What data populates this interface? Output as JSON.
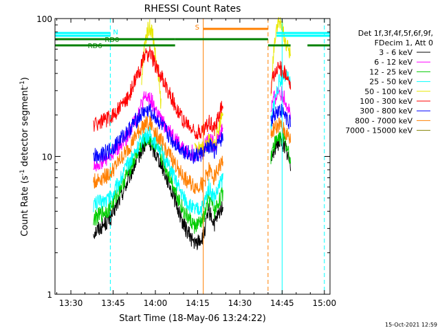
{
  "chart_data": {
    "type": "line",
    "title": "RHESSI Count Rates",
    "xlabel": "Start Time (18-May-06 13:24:22)",
    "ylabel_main": "Count Rate (s",
    "ylabel_sup1": "-1",
    "ylabel_mid": " detector segment",
    "ylabel_sup2": "-1",
    "ylabel_end": ")",
    "yscale": "log",
    "ylim": [
      1,
      100
    ],
    "xlim": [
      "13:24:22",
      "15:02:00"
    ],
    "x_tick_labels": [
      "13:30",
      "13:45",
      "14:00",
      "14:15",
      "14:30",
      "14:45",
      "15:00"
    ],
    "x_ticks": [
      "13:30",
      "13:45",
      "14:00",
      "14:15",
      "14:30",
      "14:45",
      "15:00"
    ],
    "y_tick_labels": [
      "1",
      "10",
      "100"
    ],
    "y_ticks": [
      1,
      10,
      100
    ],
    "footer_date": "15-Oct-2021 12:59",
    "legend": {
      "header1": "Det 1f,3f,4f,5f,6f,9f,",
      "header2": "FDecim 1, Att 0",
      "placement": "right"
    },
    "series": [
      {
        "name": "3 - 6 keV",
        "color": "#000000",
        "points": [
          [
            "13:38",
            2.8
          ],
          [
            "13:44",
            3.5
          ],
          [
            "13:50",
            6.5
          ],
          [
            "13:54",
            10
          ],
          [
            "13:56",
            12
          ],
          [
            "13:58",
            12.5
          ],
          [
            "14:02",
            9
          ],
          [
            "14:06",
            5.5
          ],
          [
            "14:10",
            3.2
          ],
          [
            "14:14",
            2.3
          ],
          [
            "14:17",
            2.6
          ],
          [
            "14:19",
            4
          ],
          [
            "14:21",
            3.2
          ],
          [
            "14:24",
            4.5
          ],
          [
            "14:41",
            9
          ],
          [
            "14:42",
            11
          ],
          [
            "14:44",
            13
          ],
          [
            "14:46",
            12
          ],
          [
            "14:48",
            8.5
          ]
        ]
      },
      {
        "name": "6 - 12 keV",
        "color": "#ff00ff",
        "points": [
          [
            "13:38",
            8.5
          ],
          [
            "13:44",
            10
          ],
          [
            "13:50",
            14
          ],
          [
            "13:54",
            21
          ],
          [
            "13:56",
            26
          ],
          [
            "13:58",
            27
          ],
          [
            "14:02",
            18
          ],
          [
            "14:06",
            14.5
          ],
          [
            "14:10",
            11
          ],
          [
            "14:14",
            10.5
          ],
          [
            "14:17",
            11
          ],
          [
            "14:19",
            14
          ],
          [
            "14:21",
            12
          ],
          [
            "14:24",
            16
          ],
          [
            "14:41",
            22
          ],
          [
            "14:42",
            26
          ],
          [
            "14:44",
            30
          ],
          [
            "14:46",
            26
          ],
          [
            "14:48",
            20
          ]
        ]
      },
      {
        "name": "12 - 25 keV",
        "color": "#00cc00",
        "points": [
          [
            "13:38",
            3.5
          ],
          [
            "13:44",
            4.2
          ],
          [
            "13:50",
            7.5
          ],
          [
            "13:54",
            11
          ],
          [
            "13:56",
            13
          ],
          [
            "13:58",
            13.5
          ],
          [
            "14:02",
            10
          ],
          [
            "14:06",
            6.5
          ],
          [
            "14:10",
            4
          ],
          [
            "14:14",
            3.1
          ],
          [
            "14:17",
            3.4
          ],
          [
            "14:19",
            5
          ],
          [
            "14:21",
            4
          ],
          [
            "14:24",
            5.5
          ],
          [
            "14:41",
            10
          ],
          [
            "14:42",
            12
          ],
          [
            "14:44",
            14
          ],
          [
            "14:46",
            13
          ],
          [
            "14:48",
            9.5
          ]
        ]
      },
      {
        "name": "25 - 50 keV",
        "color": "#00ffff",
        "points": [
          [
            "13:38",
            4.5
          ],
          [
            "13:44",
            5
          ],
          [
            "13:50",
            8.5
          ],
          [
            "13:54",
            12
          ],
          [
            "13:56",
            14
          ],
          [
            "13:58",
            14.5
          ],
          [
            "14:02",
            11
          ],
          [
            "14:06",
            7.5
          ],
          [
            "14:10",
            5
          ],
          [
            "14:14",
            4
          ],
          [
            "14:17",
            4.3
          ],
          [
            "14:19",
            6
          ],
          [
            "14:21",
            5
          ],
          [
            "14:24",
            7
          ],
          [
            "14:41",
            16
          ],
          [
            "14:42",
            24
          ],
          [
            "14:44",
            35
          ],
          [
            "14:46",
            40
          ],
          [
            "14:48",
            33
          ]
        ]
      },
      {
        "name": "50 - 100 keV",
        "color": "#e8e800",
        "points": [
          [
            "13:55",
            30
          ],
          [
            "13:56",
            60
          ],
          [
            "13:57",
            80
          ],
          [
            "13:58",
            88
          ],
          [
            "13:59",
            80
          ],
          [
            "14:00",
            55
          ],
          [
            "14:01",
            38
          ],
          [
            "14:02",
            24
          ],
          [
            "14:14",
            11
          ],
          [
            "14:17",
            11.5
          ],
          [
            "14:19",
            13
          ],
          [
            "14:21",
            12
          ],
          [
            "14:24",
            22
          ],
          [
            "14:41",
            25
          ],
          [
            "14:42",
            60
          ],
          [
            "14:43",
            90
          ],
          [
            "14:44",
            95
          ],
          [
            "14:45",
            85
          ],
          [
            "14:46",
            70
          ],
          [
            "14:48",
            55
          ]
        ]
      },
      {
        "name": "100 - 300 keV",
        "color": "#ff0000",
        "points": [
          [
            "13:38",
            17
          ],
          [
            "13:44",
            19
          ],
          [
            "13:50",
            26
          ],
          [
            "13:54",
            40
          ],
          [
            "13:56",
            52
          ],
          [
            "13:58",
            57
          ],
          [
            "14:02",
            38
          ],
          [
            "14:06",
            26
          ],
          [
            "14:10",
            18
          ],
          [
            "14:14",
            15
          ],
          [
            "14:17",
            15
          ],
          [
            "14:19",
            18
          ],
          [
            "14:21",
            16
          ],
          [
            "14:24",
            25
          ],
          [
            "14:41",
            32
          ],
          [
            "14:42",
            38
          ],
          [
            "14:44",
            45
          ],
          [
            "14:46",
            40
          ],
          [
            "14:48",
            32
          ]
        ]
      },
      {
        "name": "300 - 800 keV",
        "color": "#0000ff",
        "points": [
          [
            "13:38",
            10
          ],
          [
            "13:44",
            11
          ],
          [
            "13:50",
            15
          ],
          [
            "13:54",
            19
          ],
          [
            "13:56",
            21
          ],
          [
            "13:58",
            21.5
          ],
          [
            "14:02",
            17
          ],
          [
            "14:06",
            13
          ],
          [
            "14:10",
            11
          ],
          [
            "14:14",
            10
          ],
          [
            "14:17",
            10.5
          ],
          [
            "14:19",
            12
          ],
          [
            "14:21",
            11
          ],
          [
            "14:24",
            14
          ],
          [
            "14:41",
            18
          ],
          [
            "14:42",
            20
          ],
          [
            "14:44",
            22
          ],
          [
            "14:46",
            20
          ],
          [
            "14:48",
            17
          ]
        ]
      },
      {
        "name": "800 - 7000 keV",
        "color": "#ff7f00",
        "points": [
          [
            "13:38",
            6.5
          ],
          [
            "13:44",
            7.5
          ],
          [
            "13:50",
            11
          ],
          [
            "13:54",
            15
          ],
          [
            "13:56",
            17
          ],
          [
            "13:58",
            17.5
          ],
          [
            "14:02",
            13
          ],
          [
            "14:06",
            9.5
          ],
          [
            "14:10",
            7
          ],
          [
            "14:14",
            6
          ],
          [
            "14:17",
            6.3
          ],
          [
            "14:19",
            8
          ],
          [
            "14:21",
            7
          ],
          [
            "14:24",
            9.5
          ],
          [
            "14:41",
            14
          ],
          [
            "14:42",
            15.5
          ],
          [
            "14:44",
            17
          ],
          [
            "14:46",
            15
          ],
          [
            "14:48",
            13
          ]
        ]
      },
      {
        "name": "7000 - 15000 keV",
        "color": "#808000",
        "points": []
      }
    ],
    "markers": {
      "orange_vertical": [
        "14:17"
      ],
      "cyan_vertical": [
        "14:45"
      ],
      "cyan_dashed": [
        "13:44",
        "15:00"
      ],
      "orange_dashed": [
        "14:40"
      ],
      "left_edge_line": [
        "13:24:22"
      ]
    },
    "flags": [
      {
        "label": "N",
        "color": "#00ffff",
        "segments": [
          [
            "13:24:22",
            "13:44"
          ],
          [
            "14:43",
            "15:02"
          ]
        ]
      },
      {
        "label": "RD0",
        "color": "#008000",
        "segments": [
          [
            "13:24:22",
            "14:07"
          ],
          [
            "14:07",
            "14:40"
          ]
        ]
      },
      {
        "label": "RD6",
        "color": "#008000",
        "segments": [
          [
            "13:24:22",
            "14:07"
          ],
          [
            "14:40",
            "14:48"
          ],
          [
            "14:54",
            "15:02"
          ]
        ]
      },
      {
        "label": "S",
        "color": "#ff7f00",
        "segments": [
          [
            "14:17",
            "14:40"
          ]
        ]
      }
    ]
  }
}
